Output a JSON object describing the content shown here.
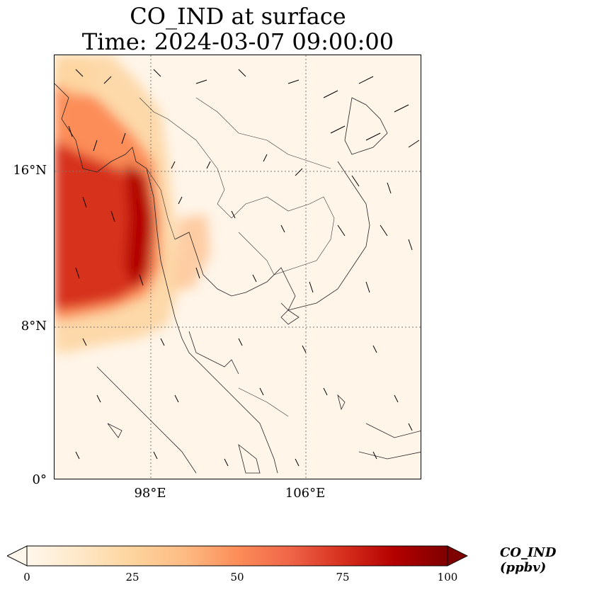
{
  "title": {
    "line1": "CO_IND at surface",
    "line2": "Time: 2024-03-07 09:00:00"
  },
  "map": {
    "projection": "PlateCarree",
    "lon_range_deg": [
      93,
      112
    ],
    "lat_range_deg": [
      0,
      22
    ],
    "gridlines": "dotted",
    "lat_ticks": [
      "16°N",
      "8°N",
      "0°"
    ],
    "lon_ticks": [
      "98°E",
      "106°E"
    ],
    "features": [
      "coastlines",
      "country-borders",
      "wind-vectors"
    ]
  },
  "colorbar": {
    "label": "CO_IND (ppbv)",
    "colormap": "OrRd",
    "colors": [
      "#fff7ec",
      "#fee8c8",
      "#fdd49e",
      "#fdbb84",
      "#fc8d59",
      "#ef6548",
      "#d7301f",
      "#b30000",
      "#7f0000"
    ],
    "range": [
      0,
      100
    ],
    "extend": "both",
    "ticks": [
      "0",
      "25",
      "50",
      "75",
      "100"
    ],
    "tick_values": [
      0,
      25,
      50,
      75,
      100
    ]
  }
}
